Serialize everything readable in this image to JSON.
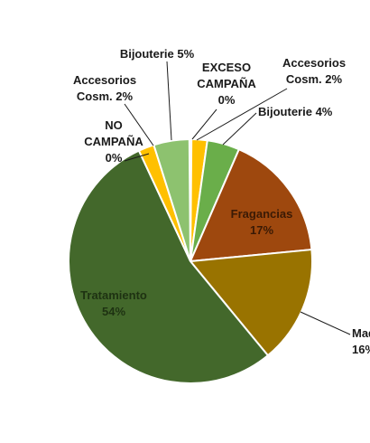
{
  "chart_data": {
    "type": "pie",
    "slices": [
      {
        "lines": [
          "EXCESO",
          "CAMPAÑA",
          "0%"
        ],
        "value": 0,
        "color": "#FFC000"
      },
      {
        "lines": [
          "Accesorios",
          "Cosm. 2%"
        ],
        "value": 2,
        "color": "#FFC000"
      },
      {
        "lines": [
          "Bijouterie 4%"
        ],
        "value": 4,
        "color": "#6AAE4A"
      },
      {
        "lines": [
          "Fragancias",
          "17%"
        ],
        "value": 17,
        "color": "#9E480E"
      },
      {
        "lines": [
          "Maquill",
          "16%"
        ],
        "value": 16,
        "color": "#997300"
      },
      {
        "lines": [
          "Tratamiento",
          "54%"
        ],
        "value": 54,
        "color": "#43682B"
      },
      {
        "lines": [
          "NO",
          "CAMPAÑA",
          "0%"
        ],
        "value": 0,
        "color": "#FFC000"
      },
      {
        "lines": [
          "Accesorios",
          "Cosm. 2%"
        ],
        "value": 2,
        "color": "#FFC000"
      },
      {
        "lines": [
          "Bijouterie 5%"
        ],
        "value": 5,
        "color": "#8DC26F"
      }
    ]
  }
}
